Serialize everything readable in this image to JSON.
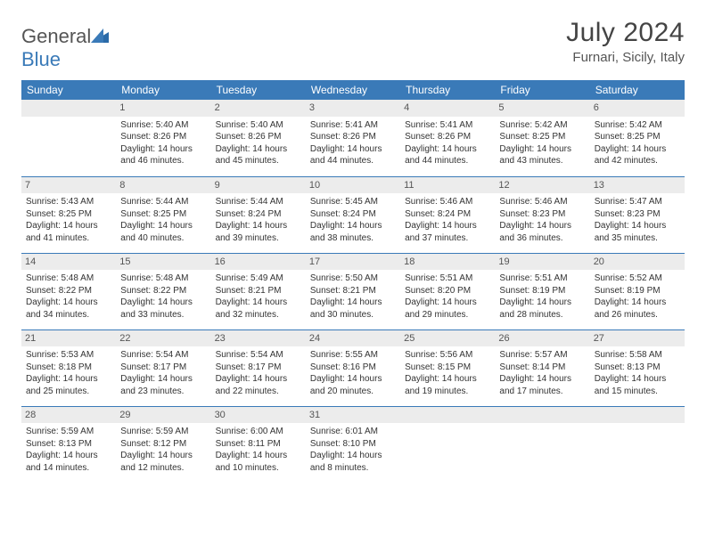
{
  "brand": {
    "text1": "General",
    "text2": "Blue"
  },
  "title": "July 2024",
  "location": "Furnari, Sicily, Italy",
  "weekdays": [
    "Sunday",
    "Monday",
    "Tuesday",
    "Wednesday",
    "Thursday",
    "Friday",
    "Saturday"
  ],
  "colors": {
    "header_bg": "#3a7ab8",
    "header_text": "#ffffff",
    "daynum_bg": "#ececec",
    "divider": "#3a7ab8"
  },
  "cells": [
    {
      "n": "",
      "sr": "",
      "ss": "",
      "dl": ""
    },
    {
      "n": "1",
      "sr": "Sunrise: 5:40 AM",
      "ss": "Sunset: 8:26 PM",
      "dl": "Daylight: 14 hours and 46 minutes."
    },
    {
      "n": "2",
      "sr": "Sunrise: 5:40 AM",
      "ss": "Sunset: 8:26 PM",
      "dl": "Daylight: 14 hours and 45 minutes."
    },
    {
      "n": "3",
      "sr": "Sunrise: 5:41 AM",
      "ss": "Sunset: 8:26 PM",
      "dl": "Daylight: 14 hours and 44 minutes."
    },
    {
      "n": "4",
      "sr": "Sunrise: 5:41 AM",
      "ss": "Sunset: 8:26 PM",
      "dl": "Daylight: 14 hours and 44 minutes."
    },
    {
      "n": "5",
      "sr": "Sunrise: 5:42 AM",
      "ss": "Sunset: 8:25 PM",
      "dl": "Daylight: 14 hours and 43 minutes."
    },
    {
      "n": "6",
      "sr": "Sunrise: 5:42 AM",
      "ss": "Sunset: 8:25 PM",
      "dl": "Daylight: 14 hours and 42 minutes."
    },
    {
      "n": "7",
      "sr": "Sunrise: 5:43 AM",
      "ss": "Sunset: 8:25 PM",
      "dl": "Daylight: 14 hours and 41 minutes."
    },
    {
      "n": "8",
      "sr": "Sunrise: 5:44 AM",
      "ss": "Sunset: 8:25 PM",
      "dl": "Daylight: 14 hours and 40 minutes."
    },
    {
      "n": "9",
      "sr": "Sunrise: 5:44 AM",
      "ss": "Sunset: 8:24 PM",
      "dl": "Daylight: 14 hours and 39 minutes."
    },
    {
      "n": "10",
      "sr": "Sunrise: 5:45 AM",
      "ss": "Sunset: 8:24 PM",
      "dl": "Daylight: 14 hours and 38 minutes."
    },
    {
      "n": "11",
      "sr": "Sunrise: 5:46 AM",
      "ss": "Sunset: 8:24 PM",
      "dl": "Daylight: 14 hours and 37 minutes."
    },
    {
      "n": "12",
      "sr": "Sunrise: 5:46 AM",
      "ss": "Sunset: 8:23 PM",
      "dl": "Daylight: 14 hours and 36 minutes."
    },
    {
      "n": "13",
      "sr": "Sunrise: 5:47 AM",
      "ss": "Sunset: 8:23 PM",
      "dl": "Daylight: 14 hours and 35 minutes."
    },
    {
      "n": "14",
      "sr": "Sunrise: 5:48 AM",
      "ss": "Sunset: 8:22 PM",
      "dl": "Daylight: 14 hours and 34 minutes."
    },
    {
      "n": "15",
      "sr": "Sunrise: 5:48 AM",
      "ss": "Sunset: 8:22 PM",
      "dl": "Daylight: 14 hours and 33 minutes."
    },
    {
      "n": "16",
      "sr": "Sunrise: 5:49 AM",
      "ss": "Sunset: 8:21 PM",
      "dl": "Daylight: 14 hours and 32 minutes."
    },
    {
      "n": "17",
      "sr": "Sunrise: 5:50 AM",
      "ss": "Sunset: 8:21 PM",
      "dl": "Daylight: 14 hours and 30 minutes."
    },
    {
      "n": "18",
      "sr": "Sunrise: 5:51 AM",
      "ss": "Sunset: 8:20 PM",
      "dl": "Daylight: 14 hours and 29 minutes."
    },
    {
      "n": "19",
      "sr": "Sunrise: 5:51 AM",
      "ss": "Sunset: 8:19 PM",
      "dl": "Daylight: 14 hours and 28 minutes."
    },
    {
      "n": "20",
      "sr": "Sunrise: 5:52 AM",
      "ss": "Sunset: 8:19 PM",
      "dl": "Daylight: 14 hours and 26 minutes."
    },
    {
      "n": "21",
      "sr": "Sunrise: 5:53 AM",
      "ss": "Sunset: 8:18 PM",
      "dl": "Daylight: 14 hours and 25 minutes."
    },
    {
      "n": "22",
      "sr": "Sunrise: 5:54 AM",
      "ss": "Sunset: 8:17 PM",
      "dl": "Daylight: 14 hours and 23 minutes."
    },
    {
      "n": "23",
      "sr": "Sunrise: 5:54 AM",
      "ss": "Sunset: 8:17 PM",
      "dl": "Daylight: 14 hours and 22 minutes."
    },
    {
      "n": "24",
      "sr": "Sunrise: 5:55 AM",
      "ss": "Sunset: 8:16 PM",
      "dl": "Daylight: 14 hours and 20 minutes."
    },
    {
      "n": "25",
      "sr": "Sunrise: 5:56 AM",
      "ss": "Sunset: 8:15 PM",
      "dl": "Daylight: 14 hours and 19 minutes."
    },
    {
      "n": "26",
      "sr": "Sunrise: 5:57 AM",
      "ss": "Sunset: 8:14 PM",
      "dl": "Daylight: 14 hours and 17 minutes."
    },
    {
      "n": "27",
      "sr": "Sunrise: 5:58 AM",
      "ss": "Sunset: 8:13 PM",
      "dl": "Daylight: 14 hours and 15 minutes."
    },
    {
      "n": "28",
      "sr": "Sunrise: 5:59 AM",
      "ss": "Sunset: 8:13 PM",
      "dl": "Daylight: 14 hours and 14 minutes."
    },
    {
      "n": "29",
      "sr": "Sunrise: 5:59 AM",
      "ss": "Sunset: 8:12 PM",
      "dl": "Daylight: 14 hours and 12 minutes."
    },
    {
      "n": "30",
      "sr": "Sunrise: 6:00 AM",
      "ss": "Sunset: 8:11 PM",
      "dl": "Daylight: 14 hours and 10 minutes."
    },
    {
      "n": "31",
      "sr": "Sunrise: 6:01 AM",
      "ss": "Sunset: 8:10 PM",
      "dl": "Daylight: 14 hours and 8 minutes."
    },
    {
      "n": "",
      "sr": "",
      "ss": "",
      "dl": ""
    },
    {
      "n": "",
      "sr": "",
      "ss": "",
      "dl": ""
    },
    {
      "n": "",
      "sr": "",
      "ss": "",
      "dl": ""
    }
  ]
}
